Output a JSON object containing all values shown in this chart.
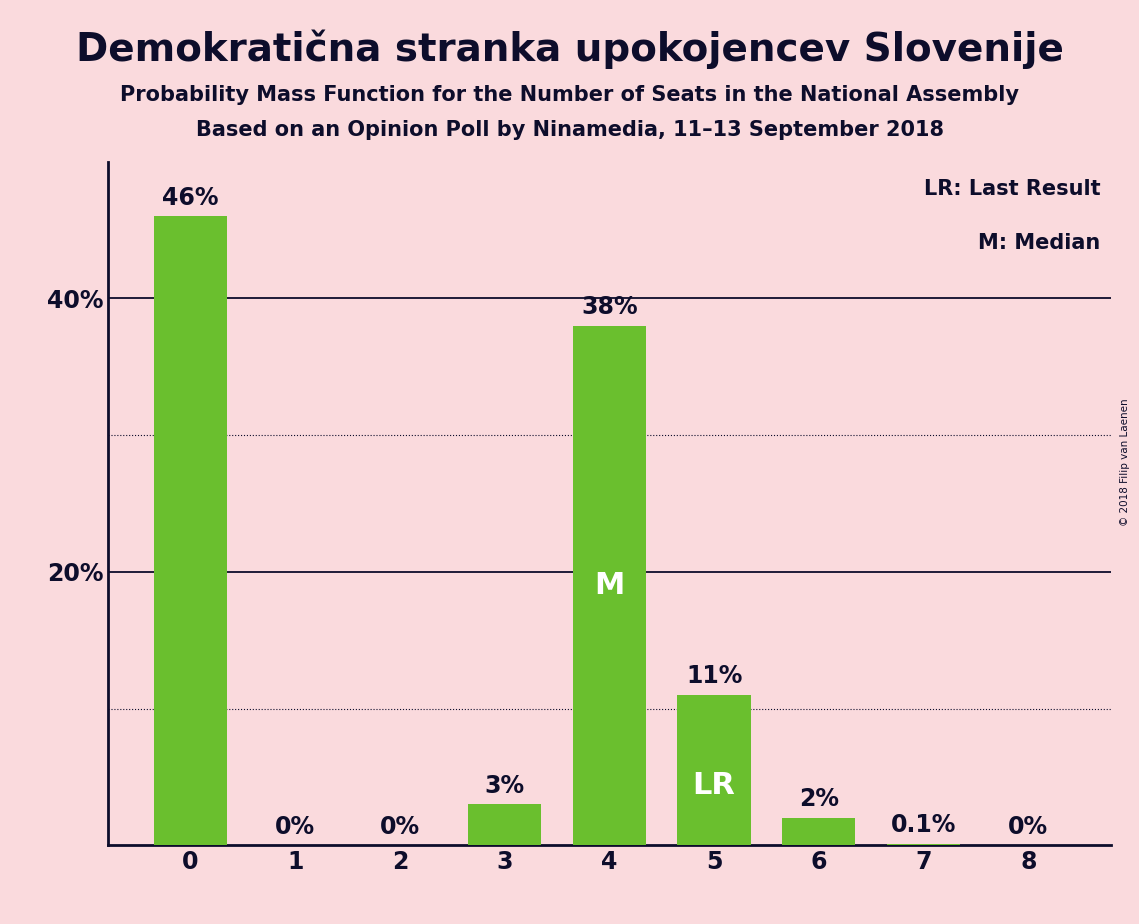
{
  "title": "Demokratična stranka upokojencev Slovenije",
  "subtitle1": "Probability Mass Function for the Number of Seats in the National Assembly",
  "subtitle2": "Based on an Opinion Poll by Ninamedia, 11–13 September 2018",
  "copyright": "© 2018 Filip van Laenen",
  "categories": [
    0,
    1,
    2,
    3,
    4,
    5,
    6,
    7,
    8
  ],
  "values": [
    46,
    0,
    0,
    3,
    38,
    11,
    2,
    0.1,
    0
  ],
  "bar_color": "#6abf2e",
  "bg_color": "#fadadd",
  "text_color": "#0d0d2b",
  "bar_labels": [
    "46%",
    "0%",
    "0%",
    "3%",
    "38%",
    "11%",
    "2%",
    "0.1%",
    "0%"
  ],
  "median_bar": 4,
  "lr_bar": 5,
  "median_label": "M",
  "lr_label": "LR",
  "legend_lr": "LR: Last Result",
  "legend_m": "M: Median",
  "ylim": [
    0,
    50
  ],
  "grid_solid": [
    20,
    40
  ],
  "grid_dotted": [
    10,
    30
  ],
  "ytick_positions": [
    20,
    40
  ],
  "ytick_labels": [
    "20%",
    "40%"
  ],
  "title_fontsize": 28,
  "subtitle_fontsize": 15,
  "tick_fontsize": 17,
  "bar_label_fontsize": 17,
  "inner_label_fontsize": 22,
  "legend_fontsize": 15
}
